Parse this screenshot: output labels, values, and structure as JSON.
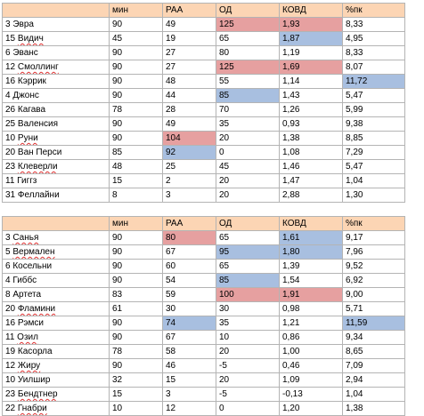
{
  "colors": {
    "header_bg": "#fcd5b4",
    "highlight_red": "#e6a0a0",
    "highlight_blue": "#a8bfe0",
    "grid": "#b4b4b4"
  },
  "tables": [
    {
      "headers": [
        "",
        "мин",
        "PAA",
        "ОД",
        "КОВД",
        "%пк"
      ],
      "rows": [
        [
          "3 Эвра",
          "90",
          "49",
          "125",
          "1,93",
          "8,33"
        ],
        [
          "15 Видич",
          "45",
          "19",
          "65",
          "1,87",
          "4,95"
        ],
        [
          "6 Эванс",
          "90",
          "27",
          "80",
          "1,19",
          "8,33"
        ],
        [
          "12 Смоллинг",
          "90",
          "27",
          "125",
          "1,69",
          "8,07"
        ],
        [
          "16 Кэррик",
          "90",
          "48",
          "55",
          "1,14",
          "11,72"
        ],
        [
          "4 Джонс",
          "90",
          "44",
          "85",
          "1,43",
          "5,47"
        ],
        [
          "26 Кагава",
          "78",
          "28",
          "70",
          "1,26",
          "5,99"
        ],
        [
          "25 Валенсия",
          "90",
          "49",
          "35",
          "0,93",
          "9,38"
        ],
        [
          "10 Руни",
          "90",
          "104",
          "20",
          "1,38",
          "8,85"
        ],
        [
          "20 Ван Перси",
          "85",
          "92",
          "0",
          "1,08",
          "7,29"
        ],
        [
          "23 Клеверли",
          "48",
          "25",
          "45",
          "1,46",
          "5,47"
        ],
        [
          "11 Гиггз",
          "15",
          "2",
          "20",
          "1,47",
          "1,04"
        ],
        [
          "31 Феллайни",
          "8",
          "3",
          "20",
          "2,88",
          "1,30"
        ]
      ]
    },
    {
      "headers": [
        "",
        "мин",
        "PAA",
        "ОД",
        "КОВД",
        "%пк"
      ],
      "rows": [
        [
          "3 Санья",
          "90",
          "80",
          "65",
          "1,61",
          "9,17"
        ],
        [
          "5 Вермален",
          "90",
          "67",
          "95",
          "1,80",
          "7,96"
        ],
        [
          "6 Косельни",
          "90",
          "60",
          "65",
          "1,39",
          "9,52"
        ],
        [
          "4 Гиббс",
          "90",
          "54",
          "85",
          "1,54",
          "6,92"
        ],
        [
          "8 Артета",
          "83",
          "59",
          "100",
          "1,91",
          "9,00"
        ],
        [
          "20 Фламини",
          "61",
          "30",
          "30",
          "0,98",
          "5,71"
        ],
        [
          "16 Рэмси",
          "90",
          "74",
          "35",
          "1,21",
          "11,59"
        ],
        [
          "11 Озил",
          "90",
          "67",
          "10",
          "0,86",
          "9,34"
        ],
        [
          "19 Касорла",
          "78",
          "58",
          "20",
          "1,00",
          "8,65"
        ],
        [
          "12 Жиру",
          "90",
          "46",
          "-5",
          "0,46",
          "7,09"
        ],
        [
          "10 Уилшир",
          "32",
          "15",
          "20",
          "1,09",
          "2,94"
        ],
        [
          "23 Бендтнер",
          "15",
          "3",
          "-5",
          "-0,13",
          "1,04"
        ],
        [
          "22 Гнабри",
          "10",
          "12",
          "0",
          "1,20",
          "1,38"
        ]
      ]
    }
  ]
}
